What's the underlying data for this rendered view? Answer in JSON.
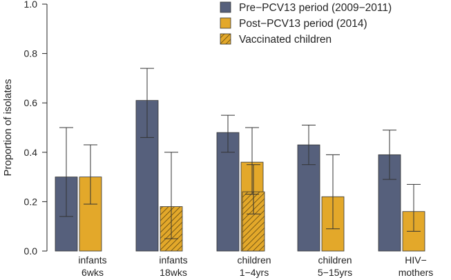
{
  "chart_data": {
    "type": "bar",
    "ylabel": "Proportion of isolates",
    "ylim": [
      0.0,
      1.0
    ],
    "yticks": [
      "0.0",
      "0.2",
      "0.4",
      "0.6",
      "0.8",
      "1.0"
    ],
    "grid": false,
    "legend_position": "top-right",
    "categories": [
      {
        "line1": "infants",
        "line2": "6wks"
      },
      {
        "line1": "infants",
        "line2": "18wks"
      },
      {
        "line1": "children",
        "line2": "1−4yrs"
      },
      {
        "line1": "children",
        "line2": "5−15yrs"
      },
      {
        "line1": "HIV−",
        "line2": "mothers"
      }
    ],
    "series": [
      {
        "name": "Pre−PCV13 period (2009−2011)",
        "color": "#56607c",
        "pattern": "solid",
        "values": [
          0.3,
          0.61,
          0.48,
          0.43,
          0.39
        ],
        "err_low": [
          0.14,
          0.46,
          0.4,
          0.35,
          0.29
        ],
        "err_high": [
          0.5,
          0.74,
          0.55,
          0.51,
          0.49
        ]
      },
      {
        "name": "Post−PCV13 period (2014)",
        "color": "#e3a82a",
        "pattern": "solid",
        "values": [
          0.3,
          null,
          0.36,
          0.22,
          0.16
        ],
        "err_low": [
          0.19,
          null,
          0.23,
          0.09,
          0.08
        ],
        "err_high": [
          0.43,
          null,
          0.5,
          0.39,
          0.27
        ]
      },
      {
        "name": "Vaccinated children",
        "color": "#e3a82a",
        "pattern": "hatched",
        "values": [
          null,
          0.18,
          0.24,
          null,
          null
        ],
        "err_low": [
          null,
          0.05,
          0.15,
          null,
          null
        ],
        "err_high": [
          null,
          0.4,
          0.35,
          null,
          null
        ]
      }
    ]
  }
}
